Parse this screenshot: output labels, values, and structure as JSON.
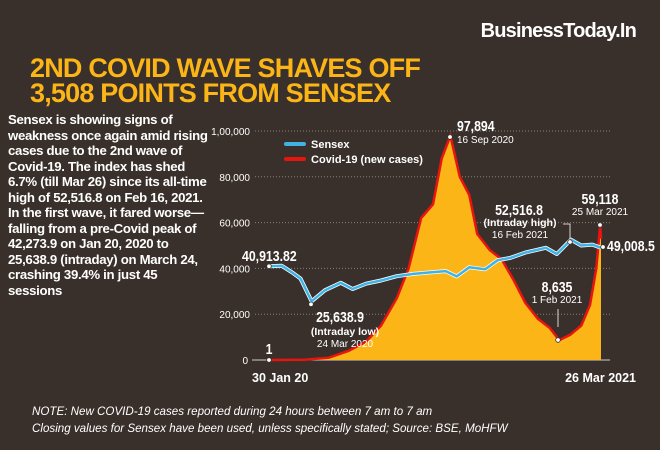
{
  "brand": "BusinessToday.In",
  "title": [
    "2ND COVID WAVE SHAVES OFF",
    "3,508 POINTS FROM SENSEX"
  ],
  "body": "Sensex is showing signs of weakness once again amid rising cases due to the 2nd wave of Covid-19. The index has shed 6.7% (till Mar 26) since its all-time high of 52,516.8 on Feb 16, 2021. In the first wave, it fared worse—falling from a pre-Covid peak of 42,273.9 on Jan 20, 2020 to 25,638.9 (intraday) on March 24, crashing 39.4% in just 45 sessions",
  "notes": [
    "NOTE: New COVID-19 cases reported during 24 hours between 7 am to 7 am",
    "Closing values for Sensex have been used, unless specifically stated; Source: BSE, MoHFW"
  ],
  "colors": {
    "background": "#3a302b",
    "title": "#fbb516",
    "sensex": "#3fb3e6",
    "covid_line": "#e8140f",
    "covid_fill": "#fbb516"
  },
  "chart_data": {
    "type": "line",
    "ylim": [
      0,
      100000
    ],
    "yticks": [
      "0",
      "20,000",
      "40,000",
      "60,000",
      "80,000",
      "1,00,000"
    ],
    "ytick_values": [
      0,
      20000,
      40000,
      60000,
      80000,
      100000
    ],
    "xlim": [
      "2020-01-30",
      "2021-03-26"
    ],
    "xtick_labels": [
      "30 Jan 20",
      "26 Mar 2021"
    ],
    "grid": true,
    "legend": "top-left",
    "series": [
      {
        "name": "Sensex",
        "points": [
          [
            "2020-01-30",
            40914
          ],
          [
            "2020-02-15",
            41200
          ],
          [
            "2020-02-28",
            38300
          ],
          [
            "2020-03-10",
            35600
          ],
          [
            "2020-03-24",
            25639
          ],
          [
            "2020-04-10",
            30500
          ],
          [
            "2020-04-30",
            33700
          ],
          [
            "2020-05-15",
            31000
          ],
          [
            "2020-06-01",
            33300
          ],
          [
            "2020-06-20",
            34700
          ],
          [
            "2020-07-10",
            36600
          ],
          [
            "2020-07-31",
            37600
          ],
          [
            "2020-08-20",
            38200
          ],
          [
            "2020-09-10",
            38800
          ],
          [
            "2020-09-24",
            36500
          ],
          [
            "2020-10-10",
            40500
          ],
          [
            "2020-10-30",
            39600
          ],
          [
            "2020-11-15",
            43600
          ],
          [
            "2020-12-01",
            44600
          ],
          [
            "2020-12-20",
            46900
          ],
          [
            "2021-01-15",
            49000
          ],
          [
            "2021-01-29",
            46300
          ],
          [
            "2021-02-16",
            52517
          ],
          [
            "2021-03-01",
            50000
          ],
          [
            "2021-03-15",
            50400
          ],
          [
            "2021-03-26",
            49009
          ]
        ]
      },
      {
        "name": "Covid-19 (new cases)",
        "points": [
          [
            "2020-01-30",
            1
          ],
          [
            "2020-03-15",
            100
          ],
          [
            "2020-04-15",
            1000
          ],
          [
            "2020-05-10",
            4000
          ],
          [
            "2020-06-01",
            8000
          ],
          [
            "2020-06-20",
            15000
          ],
          [
            "2020-07-10",
            27000
          ],
          [
            "2020-07-25",
            40000
          ],
          [
            "2020-08-10",
            62000
          ],
          [
            "2020-08-25",
            68000
          ],
          [
            "2020-09-05",
            88000
          ],
          [
            "2020-09-16",
            97894
          ],
          [
            "2020-09-28",
            80000
          ],
          [
            "2020-10-10",
            72000
          ],
          [
            "2020-10-20",
            55000
          ],
          [
            "2020-11-05",
            48000
          ],
          [
            "2020-11-20",
            44000
          ],
          [
            "2020-12-05",
            35000
          ],
          [
            "2020-12-20",
            25000
          ],
          [
            "2021-01-05",
            18000
          ],
          [
            "2021-01-20",
            14000
          ],
          [
            "2021-02-01",
            8635
          ],
          [
            "2021-02-15",
            11000
          ],
          [
            "2021-03-01",
            15000
          ],
          [
            "2021-03-12",
            24000
          ],
          [
            "2021-03-20",
            40000
          ],
          [
            "2021-03-25",
            59118
          ],
          [
            "2021-03-26",
            53000
          ]
        ]
      }
    ],
    "annotations": [
      {
        "id": "sensex-start",
        "value": "40,913.82"
      },
      {
        "id": "sensex-low",
        "value": "25,638.9",
        "note": "(Intraday low)",
        "date": "24 Mar 2020"
      },
      {
        "id": "covid-start",
        "value": "1"
      },
      {
        "id": "covid-peak",
        "value": "97,894",
        "date": "16 Sep 2020"
      },
      {
        "id": "sensex-high",
        "value": "52,516.8",
        "note": "(Intraday high)",
        "date": "16 Feb 2021"
      },
      {
        "id": "covid-low",
        "value": "8,635",
        "date": "1 Feb 2021"
      },
      {
        "id": "covid-latest",
        "value": "59,118",
        "date": "25 Mar 2021"
      },
      {
        "id": "sensex-end",
        "value": "49,008.5"
      }
    ]
  }
}
